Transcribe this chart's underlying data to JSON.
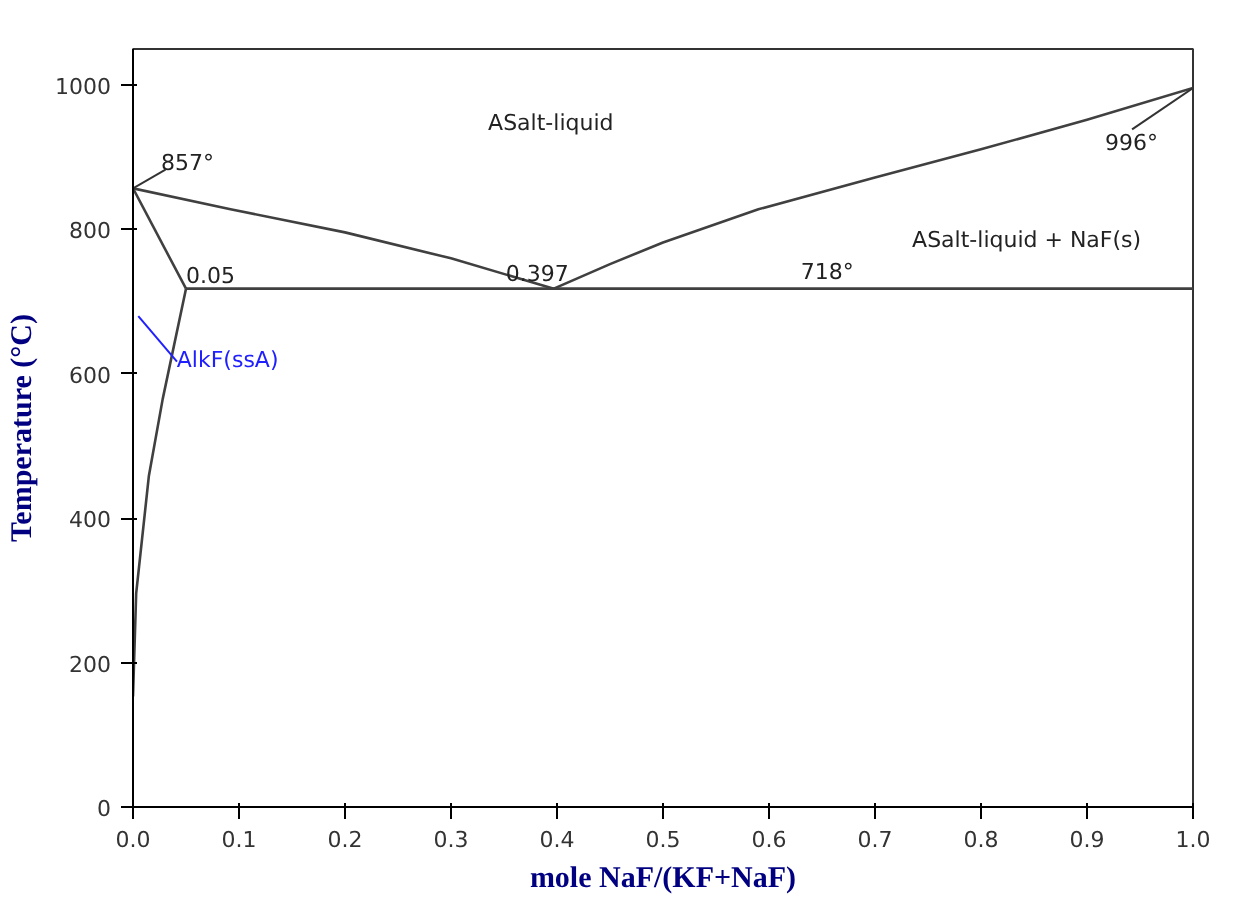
{
  "chart_data": {
    "type": "line",
    "xlabel": "mole NaF/(KF+NaF)",
    "ylabel": "Temperature (°C)",
    "xlim": [
      0,
      1
    ],
    "ylim": [
      0,
      1050
    ],
    "xticks": [
      {
        "value": 0,
        "label": "0.0"
      },
      0.1,
      0.2,
      0.3,
      0.4,
      0.5,
      0.6,
      0.7,
      0.8,
      0.9,
      {
        "value": 1,
        "label": "1.0"
      }
    ],
    "yticks": [
      0,
      200,
      400,
      600,
      800,
      1000
    ],
    "grid": false,
    "marker": "none",
    "line_style": "solid",
    "series": [
      {
        "color": "#404040",
        "x": [
          0,
          0.092,
          0.2,
          0.3,
          0.397
        ],
        "values": [
          857,
          828,
          796,
          760,
          718
        ]
      },
      {
        "color": "#404040",
        "x": [
          0.397,
          0.45,
          0.5,
          0.59,
          0.7,
          0.8,
          0.9,
          1
        ],
        "values": [
          718,
          752,
          782,
          828,
          872,
          911,
          952,
          996
        ]
      },
      {
        "color": "#404040",
        "x": [
          0.05,
          1
        ],
        "values": [
          718,
          718
        ]
      },
      {
        "color": "#404040",
        "x": [
          0,
          0.05
        ],
        "values": [
          857,
          718
        ]
      },
      {
        "color": "#404040",
        "x": [
          0.05,
          0.028,
          0.015,
          0.003,
          0
        ],
        "values": [
          718,
          565,
          459,
          296,
          153
        ]
      }
    ],
    "annotations": [
      {
        "text": "857°",
        "x": 0,
        "y": 857
      },
      {
        "text": "0.05",
        "x": 0.05,
        "y": 718
      },
      {
        "text": "0.397",
        "x": 0.397,
        "y": 718
      },
      {
        "text": "718°",
        "x": 0.63,
        "y": 718
      },
      {
        "text": "996°",
        "x": 1,
        "y": 996
      },
      {
        "text": "AlkF(ssA)",
        "x": 0.03,
        "y": 640
      },
      "ASalt-liquid",
      "ASalt-liquid + NaF(s)"
    ]
  }
}
